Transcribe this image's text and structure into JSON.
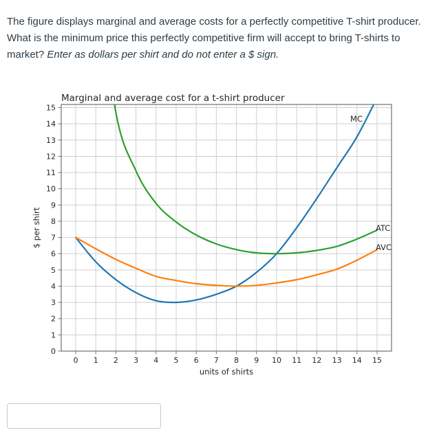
{
  "question": {
    "main": "The figure displays marginal and average costs for a perfectly competitive T-shirt producer. What is the minimum price this perfectly competitive firm will accept to bring T-shirts to market? ",
    "italic": "Enter as dollars per shirt and do not enter a $ sign."
  },
  "answer": {
    "value": ""
  },
  "colors": {
    "mc": "#1f77b4",
    "atc": "#2ca02c",
    "avc": "#ff7f0e",
    "grid": "#cfcfcf",
    "spine": "#707070",
    "chart_text": "#262626"
  },
  "chart_data": {
    "type": "line",
    "title": "Marginal and average cost for a t-shirt producer",
    "xlabel": "units of shirts",
    "ylabel": "$ per shirt",
    "xlim": [
      -0.72,
      15.72
    ],
    "ylim": [
      0,
      15.2
    ],
    "xticks": [
      0,
      1,
      2,
      3,
      4,
      5,
      6,
      7,
      8,
      9,
      10,
      11,
      12,
      13,
      14,
      15
    ],
    "yticks": [
      0,
      1,
      2,
      3,
      4,
      5,
      6,
      7,
      8,
      9,
      10,
      11,
      12,
      13,
      14,
      15
    ],
    "grid": true,
    "legend_position": "inline-curve-labels",
    "series": [
      {
        "name": "MC",
        "color": "#1f77b4",
        "x": [
          0,
          1,
          2,
          3,
          4,
          5,
          6,
          7,
          8,
          9,
          10,
          11,
          12,
          13,
          14,
          15
        ],
        "y": [
          7.0,
          5.5,
          4.4,
          3.6,
          3.1,
          3.0,
          3.15,
          3.5,
          4.0,
          4.85,
          6.0,
          7.6,
          9.4,
          11.3,
          13.2,
          15.6
        ],
        "label": {
          "text": "MC",
          "q": 14.28,
          "v": 14.13,
          "anchor": "end"
        }
      },
      {
        "name": "ATC",
        "color": "#2ca02c",
        "x": [
          1,
          2,
          3,
          4,
          5,
          6,
          7,
          8,
          9,
          10,
          11,
          12,
          13,
          14,
          15
        ],
        "y": [
          24.3,
          14.7,
          11.1,
          9.1,
          7.95,
          7.15,
          6.6,
          6.25,
          6.05,
          6.0,
          6.05,
          6.2,
          6.45,
          6.9,
          7.45
        ],
        "label": {
          "text": "ATC",
          "q": 14.93,
          "v": 7.4,
          "anchor": "start"
        }
      },
      {
        "name": "AVC",
        "color": "#ff7f0e",
        "x": [
          0,
          1,
          2,
          3,
          4,
          5,
          6,
          7,
          8,
          9,
          10,
          11,
          12,
          13,
          14,
          15
        ],
        "y": [
          7.0,
          6.3,
          5.65,
          5.1,
          4.6,
          4.35,
          4.15,
          4.05,
          4.0,
          4.05,
          4.2,
          4.4,
          4.7,
          5.05,
          5.6,
          6.25
        ],
        "label": {
          "text": "AVC",
          "q": 14.93,
          "v": 6.22,
          "anchor": "start"
        }
      }
    ],
    "key_points": {
      "mc_min": {
        "q": 5,
        "v": 3
      },
      "avc_min_mc_crossing": {
        "q": 8,
        "v": 4
      },
      "atc_min_mc_crossing": {
        "q": 10,
        "v": 6
      }
    }
  }
}
